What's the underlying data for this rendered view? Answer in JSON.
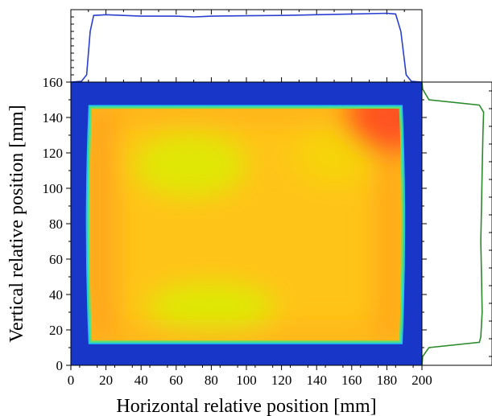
{
  "chart_data": [
    {
      "type": "heatmap",
      "title": "",
      "xlabel": "Horizontal relative position [mm]",
      "ylabel": "Vertical relative position [mm]",
      "xlim": [
        0,
        200
      ],
      "ylim": [
        0,
        160
      ],
      "x_ticks": [
        0,
        20,
        40,
        60,
        80,
        100,
        120,
        140,
        160,
        180,
        200
      ],
      "y_ticks": [
        0,
        20,
        40,
        60,
        80,
        100,
        120,
        140,
        160
      ],
      "grid": false,
      "field": {
        "x_range": [
          12,
          187
        ],
        "y_range": [
          14,
          145
        ],
        "background_color": "#1836c8",
        "field_color_range": [
          "#d8f000",
          "#ff5020"
        ]
      }
    },
    {
      "type": "line",
      "name": "horizontal-profile",
      "xlim": [
        0,
        200
      ],
      "x": [
        0,
        6,
        9,
        11,
        13,
        20,
        40,
        60,
        70,
        80,
        100,
        120,
        140,
        160,
        180,
        185,
        188,
        191,
        194,
        200
      ],
      "values": [
        0,
        1,
        10,
        70,
        92,
        93,
        91,
        91,
        90,
        91,
        91.5,
        92,
        93,
        94,
        95,
        94,
        70,
        10,
        1,
        0
      ],
      "color": "#2a3fd0"
    },
    {
      "type": "line",
      "name": "vertical-profile",
      "ylim": [
        0,
        160
      ],
      "y": [
        0,
        5,
        10,
        13,
        16,
        30,
        50,
        70,
        90,
        110,
        130,
        143,
        147,
        150,
        156,
        160
      ],
      "values": [
        0,
        1,
        10,
        82,
        84,
        86,
        85,
        84,
        85,
        86,
        87,
        88,
        82,
        10,
        1,
        0
      ],
      "color": "#2a8a2a"
    }
  ]
}
